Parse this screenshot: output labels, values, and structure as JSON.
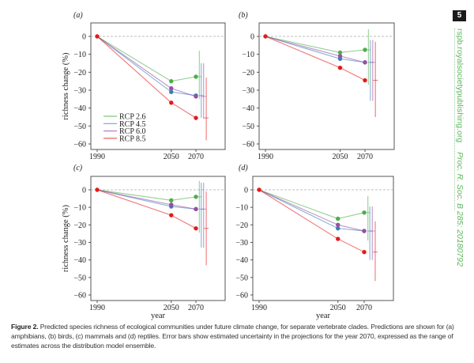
{
  "journal": {
    "page_number": "5",
    "url": "rspb.royalsocietypublishing.org",
    "citation": "Proc. R. Soc. B 285: 20180792"
  },
  "caption": {
    "label": "Figure 2.",
    "text": "Predicted species richness of ecological communities under future climate change, for separate vertebrate clades. Predictions are shown for (a) amphibians, (b) birds, (c) mammals and (d) reptiles. Error bars show estimated uncertainty in the projections for the year 2070, expressed as the range of estimates across the distribution model ensemble."
  },
  "colors": {
    "RCP 2.6": "#4daf4a",
    "RCP 4.5": "#377eb8",
    "RCP 6.0": "#984ea3",
    "RCP 8.5": "#e41a1c"
  },
  "chart_data": [
    {
      "panel": "(a)",
      "type": "line",
      "ylabel": "richness change (%)",
      "xlabel": "",
      "x": [
        1990,
        2050,
        2070
      ],
      "xticks": [
        "1990",
        "2050",
        "2070"
      ],
      "ylim": [
        -62,
        7
      ],
      "yticks": [
        0,
        -10,
        -20,
        -30,
        -40,
        -50,
        -60
      ],
      "reference_line": 0,
      "legend": "bottom-left",
      "series": [
        {
          "name": "RCP 2.6",
          "values": [
            0,
            -25,
            -22.5
          ],
          "error_2070": [
            -8,
            -35
          ]
        },
        {
          "name": "RCP 4.5",
          "values": [
            0,
            -31,
            -33
          ],
          "error_2070": [
            -15,
            -45.5
          ]
        },
        {
          "name": "RCP 6.0",
          "values": [
            0,
            -29,
            -33.5
          ],
          "error_2070": [
            -15,
            -46
          ]
        },
        {
          "name": "RCP 8.5",
          "values": [
            0,
            -37,
            -45.5
          ],
          "error_2070": [
            -23,
            -58
          ]
        }
      ]
    },
    {
      "panel": "(b)",
      "type": "line",
      "ylabel": "",
      "xlabel": "",
      "x": [
        1990,
        2050,
        2070
      ],
      "xticks": [
        "1990",
        "2050",
        "2070"
      ],
      "ylim": [
        -62,
        7
      ],
      "yticks": [
        0,
        -10,
        -20,
        -30,
        -40,
        -50,
        -60
      ],
      "reference_line": 0,
      "series": [
        {
          "name": "RCP 2.6",
          "values": [
            0,
            -9,
            -7.5
          ],
          "error_2070": [
            4,
            -27
          ]
        },
        {
          "name": "RCP 4.5",
          "values": [
            0,
            -12.5,
            -14.5
          ],
          "error_2070": [
            -2,
            -36
          ]
        },
        {
          "name": "RCP 6.0",
          "values": [
            0,
            -11,
            -14.5
          ],
          "error_2070": [
            -2,
            -36
          ]
        },
        {
          "name": "RCP 8.5",
          "values": [
            0,
            -17.5,
            -24.5
          ],
          "error_2070": [
            -3,
            -45
          ]
        }
      ]
    },
    {
      "panel": "(c)",
      "type": "line",
      "ylabel": "richness change (%)",
      "xlabel": "year",
      "x": [
        1990,
        2050,
        2070
      ],
      "xticks": [
        "1990",
        "2050",
        "2070"
      ],
      "ylim": [
        -62,
        7
      ],
      "yticks": [
        0,
        -10,
        -20,
        -30,
        -40,
        -50,
        -60
      ],
      "reference_line": 0,
      "series": [
        {
          "name": "RCP 2.6",
          "values": [
            0,
            -6,
            -4
          ],
          "error_2070": [
            5,
            -24.5
          ]
        },
        {
          "name": "RCP 4.5",
          "values": [
            0,
            -9.5,
            -11
          ],
          "error_2070": [
            4,
            -33
          ]
        },
        {
          "name": "RCP 6.0",
          "values": [
            0,
            -8.5,
            -11
          ],
          "error_2070": [
            4,
            -33
          ]
        },
        {
          "name": "RCP 8.5",
          "values": [
            0,
            -14.5,
            -22
          ],
          "error_2070": [
            -1,
            -43
          ]
        }
      ]
    },
    {
      "panel": "(d)",
      "type": "line",
      "ylabel": "",
      "xlabel": "year",
      "x": [
        1990,
        2050,
        2070
      ],
      "xticks": [
        "1990",
        "2050",
        "2070"
      ],
      "ylim": [
        -62,
        7
      ],
      "yticks": [
        0,
        -10,
        -20,
        -30,
        -40,
        -50,
        -60
      ],
      "reference_line": 0,
      "series": [
        {
          "name": "RCP 2.6",
          "values": [
            0,
            -16.5,
            -13
          ],
          "error_2070": [
            -3.5,
            -29
          ]
        },
        {
          "name": "RCP 4.5",
          "values": [
            0,
            -22,
            -23.5
          ],
          "error_2070": [
            -9.5,
            -40
          ]
        },
        {
          "name": "RCP 6.0",
          "values": [
            0,
            -20,
            -23.5
          ],
          "error_2070": [
            -9.5,
            -40
          ]
        },
        {
          "name": "RCP 8.5",
          "values": [
            0,
            -28,
            -35.5
          ],
          "error_2070": [
            -18,
            -52
          ]
        }
      ]
    }
  ]
}
